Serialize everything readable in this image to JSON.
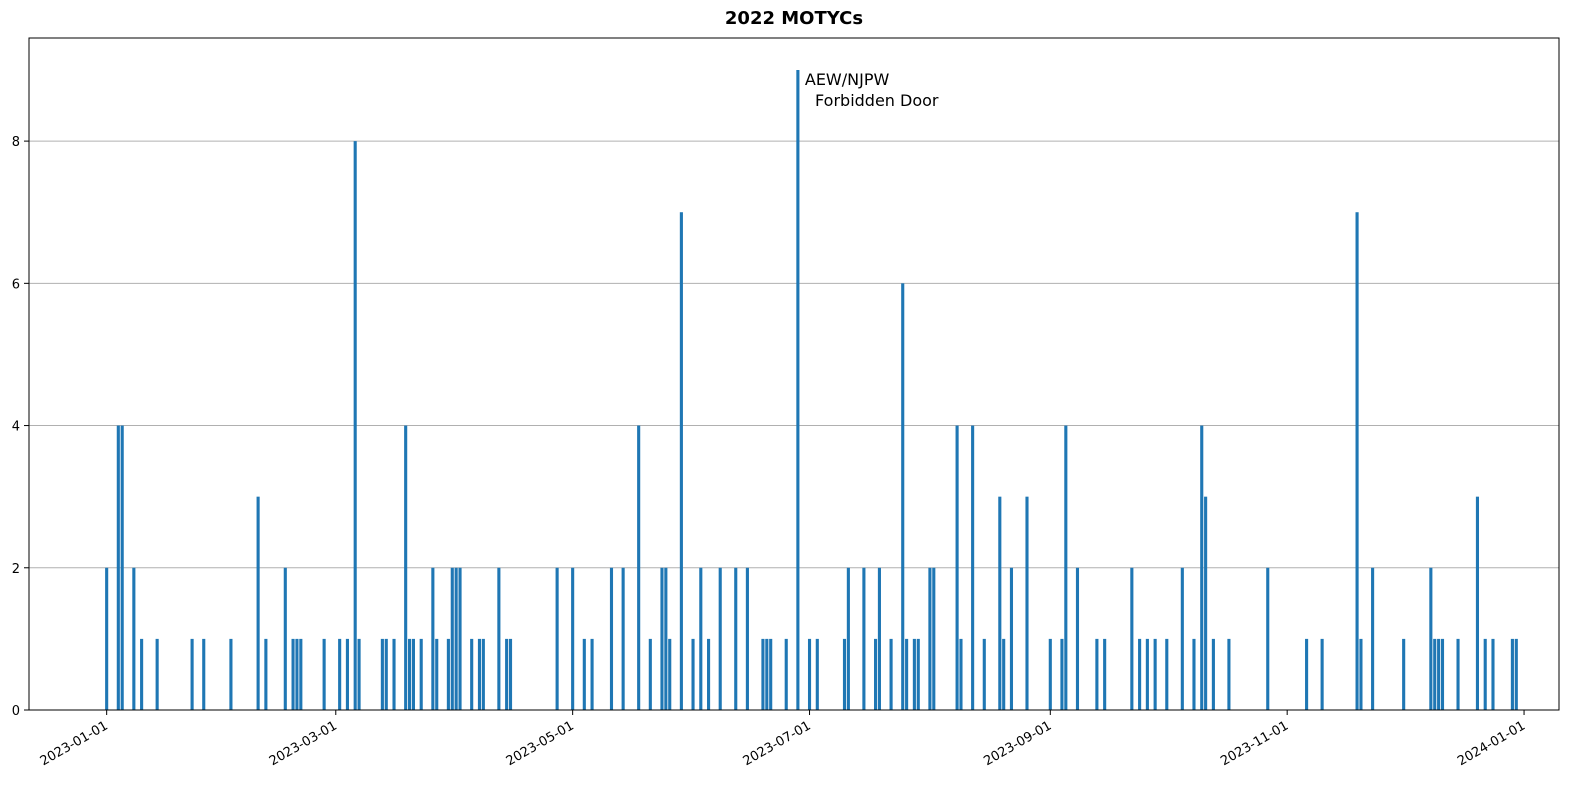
{
  "chart_data": {
    "type": "bar",
    "title": "2022 MOTYCs",
    "xlabel": "",
    "ylabel": "",
    "x_range": [
      "2022-12-12",
      "2024-01-10"
    ],
    "ylim": [
      0,
      9.45
    ],
    "y_ticks": [
      0,
      2,
      4,
      6,
      8
    ],
    "x_ticks": [
      "2023-01-01",
      "2023-03-01",
      "2023-05-01",
      "2023-07-01",
      "2023-09-01",
      "2023-11-01",
      "2024-01-01"
    ],
    "grid": "y",
    "color": "#1f77b4",
    "annotations": [
      {
        "x": "2023-06-28",
        "y": 9,
        "lines": [
          "AEW/NJPW",
          "  Forbidden Door"
        ]
      }
    ],
    "points": [
      {
        "x": "2023-01-01",
        "y": 2
      },
      {
        "x": "2023-01-04",
        "y": 4
      },
      {
        "x": "2023-01-05",
        "y": 4
      },
      {
        "x": "2023-01-08",
        "y": 2
      },
      {
        "x": "2023-01-10",
        "y": 1
      },
      {
        "x": "2023-01-14",
        "y": 1
      },
      {
        "x": "2023-01-23",
        "y": 1
      },
      {
        "x": "2023-01-26",
        "y": 1
      },
      {
        "x": "2023-02-02",
        "y": 1
      },
      {
        "x": "2023-02-09",
        "y": 3
      },
      {
        "x": "2023-02-11",
        "y": 1
      },
      {
        "x": "2023-02-16",
        "y": 2
      },
      {
        "x": "2023-02-18",
        "y": 1
      },
      {
        "x": "2023-02-19",
        "y": 1
      },
      {
        "x": "2023-02-20",
        "y": 1
      },
      {
        "x": "2023-02-26",
        "y": 1
      },
      {
        "x": "2023-03-02",
        "y": 1
      },
      {
        "x": "2023-03-04",
        "y": 1
      },
      {
        "x": "2023-03-06",
        "y": 8
      },
      {
        "x": "2023-03-07",
        "y": 1
      },
      {
        "x": "2023-03-13",
        "y": 1
      },
      {
        "x": "2023-03-14",
        "y": 1
      },
      {
        "x": "2023-03-16",
        "y": 1
      },
      {
        "x": "2023-03-19",
        "y": 4
      },
      {
        "x": "2023-03-20",
        "y": 1
      },
      {
        "x": "2023-03-21",
        "y": 1
      },
      {
        "x": "2023-03-23",
        "y": 1
      },
      {
        "x": "2023-03-26",
        "y": 2
      },
      {
        "x": "2023-03-27",
        "y": 1
      },
      {
        "x": "2023-03-30",
        "y": 1
      },
      {
        "x": "2023-03-31",
        "y": 2
      },
      {
        "x": "2023-04-01",
        "y": 2
      },
      {
        "x": "2023-04-02",
        "y": 2
      },
      {
        "x": "2023-04-05",
        "y": 1
      },
      {
        "x": "2023-04-07",
        "y": 1
      },
      {
        "x": "2023-04-08",
        "y": 1
      },
      {
        "x": "2023-04-12",
        "y": 2
      },
      {
        "x": "2023-04-14",
        "y": 1
      },
      {
        "x": "2023-04-15",
        "y": 1
      },
      {
        "x": "2023-04-27",
        "y": 2
      },
      {
        "x": "2023-05-01",
        "y": 2
      },
      {
        "x": "2023-05-04",
        "y": 1
      },
      {
        "x": "2023-05-06",
        "y": 1
      },
      {
        "x": "2023-05-11",
        "y": 2
      },
      {
        "x": "2023-05-14",
        "y": 2
      },
      {
        "x": "2023-05-18",
        "y": 4
      },
      {
        "x": "2023-05-21",
        "y": 1
      },
      {
        "x": "2023-05-24",
        "y": 2
      },
      {
        "x": "2023-05-25",
        "y": 2
      },
      {
        "x": "2023-05-26",
        "y": 1
      },
      {
        "x": "2023-05-29",
        "y": 7
      },
      {
        "x": "2023-06-01",
        "y": 1
      },
      {
        "x": "2023-06-03",
        "y": 2
      },
      {
        "x": "2023-06-05",
        "y": 1
      },
      {
        "x": "2023-06-08",
        "y": 2
      },
      {
        "x": "2023-06-12",
        "y": 2
      },
      {
        "x": "2023-06-15",
        "y": 2
      },
      {
        "x": "2023-06-19",
        "y": 1
      },
      {
        "x": "2023-06-20",
        "y": 1
      },
      {
        "x": "2023-06-21",
        "y": 1
      },
      {
        "x": "2023-06-25",
        "y": 1
      },
      {
        "x": "2023-06-28",
        "y": 9
      },
      {
        "x": "2023-07-01",
        "y": 1
      },
      {
        "x": "2023-07-03",
        "y": 1
      },
      {
        "x": "2023-07-10",
        "y": 1
      },
      {
        "x": "2023-07-11",
        "y": 2
      },
      {
        "x": "2023-07-15",
        "y": 2
      },
      {
        "x": "2023-07-18",
        "y": 1
      },
      {
        "x": "2023-07-19",
        "y": 2
      },
      {
        "x": "2023-07-22",
        "y": 1
      },
      {
        "x": "2023-07-25",
        "y": 6
      },
      {
        "x": "2023-07-26",
        "y": 1
      },
      {
        "x": "2023-07-28",
        "y": 1
      },
      {
        "x": "2023-07-29",
        "y": 1
      },
      {
        "x": "2023-08-01",
        "y": 2
      },
      {
        "x": "2023-08-02",
        "y": 2
      },
      {
        "x": "2023-08-08",
        "y": 4
      },
      {
        "x": "2023-08-09",
        "y": 1
      },
      {
        "x": "2023-08-12",
        "y": 4
      },
      {
        "x": "2023-08-15",
        "y": 1
      },
      {
        "x": "2023-08-19",
        "y": 3
      },
      {
        "x": "2023-08-20",
        "y": 1
      },
      {
        "x": "2023-08-22",
        "y": 2
      },
      {
        "x": "2023-08-26",
        "y": 3
      },
      {
        "x": "2023-09-01",
        "y": 1
      },
      {
        "x": "2023-09-04",
        "y": 1
      },
      {
        "x": "2023-09-05",
        "y": 4
      },
      {
        "x": "2023-09-08",
        "y": 2
      },
      {
        "x": "2023-09-13",
        "y": 1
      },
      {
        "x": "2023-09-15",
        "y": 1
      },
      {
        "x": "2023-09-22",
        "y": 2
      },
      {
        "x": "2023-09-24",
        "y": 1
      },
      {
        "x": "2023-09-26",
        "y": 1
      },
      {
        "x": "2023-09-28",
        "y": 1
      },
      {
        "x": "2023-10-01",
        "y": 1
      },
      {
        "x": "2023-10-05",
        "y": 2
      },
      {
        "x": "2023-10-08",
        "y": 1
      },
      {
        "x": "2023-10-10",
        "y": 4
      },
      {
        "x": "2023-10-11",
        "y": 3
      },
      {
        "x": "2023-10-13",
        "y": 1
      },
      {
        "x": "2023-10-17",
        "y": 1
      },
      {
        "x": "2023-10-27",
        "y": 2
      },
      {
        "x": "2023-11-06",
        "y": 1
      },
      {
        "x": "2023-11-10",
        "y": 1
      },
      {
        "x": "2023-11-19",
        "y": 7
      },
      {
        "x": "2023-11-20",
        "y": 1
      },
      {
        "x": "2023-11-23",
        "y": 2
      },
      {
        "x": "2023-12-01",
        "y": 1
      },
      {
        "x": "2023-12-08",
        "y": 2
      },
      {
        "x": "2023-12-09",
        "y": 1
      },
      {
        "x": "2023-12-10",
        "y": 1
      },
      {
        "x": "2023-12-11",
        "y": 1
      },
      {
        "x": "2023-12-15",
        "y": 1
      },
      {
        "x": "2023-12-20",
        "y": 3
      },
      {
        "x": "2023-12-22",
        "y": 1
      },
      {
        "x": "2023-12-24",
        "y": 1
      },
      {
        "x": "2023-12-29",
        "y": 1
      },
      {
        "x": "2023-12-30",
        "y": 1
      }
    ]
  }
}
